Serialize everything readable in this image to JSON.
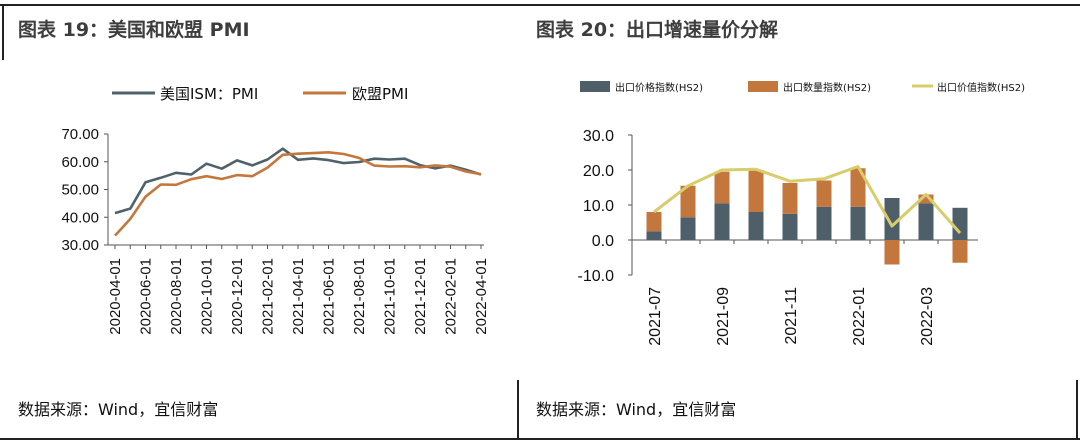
{
  "colors": {
    "us_line": "#4f626a",
    "eu_line": "#c4773d",
    "price_bar": "#4e5f69",
    "qty_bar": "#c4773d",
    "value_line": "#d8cc6b",
    "axis": "#555555"
  },
  "left": {
    "title": "图表 19：美国和欧盟 PMI",
    "source": "数据来源：Wind，宜信财富"
  },
  "right": {
    "title": "图表 20：出口增速量价分解",
    "source": "数据来源：Wind，宜信财富"
  },
  "chart_data": [
    {
      "type": "line",
      "title": "",
      "xlabel": "",
      "ylabel": "",
      "ylim": [
        30,
        70
      ],
      "yticks": [
        "70.00",
        "60.00",
        "50.00",
        "40.00",
        "30.00"
      ],
      "xtick_labels": [
        "2020-04-01",
        "2020-06-01",
        "2020-08-01",
        "2020-10-01",
        "2020-12-01",
        "2021-02-01",
        "2021-04-01",
        "2021-06-01",
        "2021-08-01",
        "2021-10-01",
        "2021-12-01",
        "2022-02-01",
        "2022-04-01"
      ],
      "x": [
        "2020-04",
        "2020-05",
        "2020-06",
        "2020-07",
        "2020-08",
        "2020-09",
        "2020-10",
        "2020-11",
        "2020-12",
        "2021-01",
        "2021-02",
        "2021-03",
        "2021-04",
        "2021-05",
        "2021-06",
        "2021-07",
        "2021-08",
        "2021-09",
        "2021-10",
        "2021-11",
        "2021-12",
        "2022-01",
        "2022-02",
        "2022-03",
        "2022-04"
      ],
      "series": [
        {
          "name": "美国ISM：PMI",
          "values": [
            41.5,
            43.1,
            52.6,
            54.2,
            56.0,
            55.4,
            59.3,
            57.5,
            60.5,
            58.7,
            60.8,
            64.7,
            60.7,
            61.2,
            60.6,
            59.5,
            59.9,
            61.1,
            60.8,
            61.1,
            58.8,
            57.6,
            58.6,
            57.1,
            55.4
          ]
        },
        {
          "name": "欧盟PMI",
          "values": [
            33.4,
            39.4,
            47.4,
            51.8,
            51.7,
            53.7,
            54.8,
            53.8,
            55.2,
            54.8,
            57.9,
            62.5,
            62.9,
            63.1,
            63.4,
            62.8,
            61.4,
            58.6,
            58.3,
            58.4,
            58.0,
            58.7,
            58.2,
            56.5,
            55.5
          ]
        }
      ],
      "grid": false,
      "legend": "top"
    },
    {
      "type": "bar",
      "title": "",
      "xlabel": "",
      "ylabel": "",
      "ylim": [
        -10,
        30
      ],
      "yticks": [
        "30.0",
        "20.0",
        "10.0",
        "0.0",
        "-10.0"
      ],
      "categories": [
        "2021-07",
        "2021-08",
        "2021-09",
        "2021-10",
        "2021-11",
        "2021-12",
        "2022-01",
        "2022-02",
        "2022-03",
        "2022-04"
      ],
      "xtick_labels": [
        "2021-07",
        "2021-09",
        "2021-11",
        "2022-01",
        "2022-03"
      ],
      "series": [
        {
          "name": "出口价格指数(HS2)",
          "kind": "bar",
          "values": [
            2.5,
            6.5,
            10.5,
            8.0,
            7.5,
            9.5,
            9.5,
            12.0,
            10.5,
            9.2
          ]
        },
        {
          "name": "出口数量指数(HS2)",
          "kind": "bar",
          "values": [
            5.5,
            9.0,
            9.0,
            12.0,
            8.8,
            7.5,
            11.0,
            -7.0,
            2.5,
            -6.5
          ]
        },
        {
          "name": "出口价值指数(HS2)",
          "kind": "line",
          "values": [
            8.0,
            15.5,
            20.0,
            20.2,
            16.8,
            17.5,
            21.0,
            4.0,
            13.0,
            2.0
          ]
        }
      ],
      "stacked": true,
      "grid": false,
      "legend": "top"
    }
  ]
}
